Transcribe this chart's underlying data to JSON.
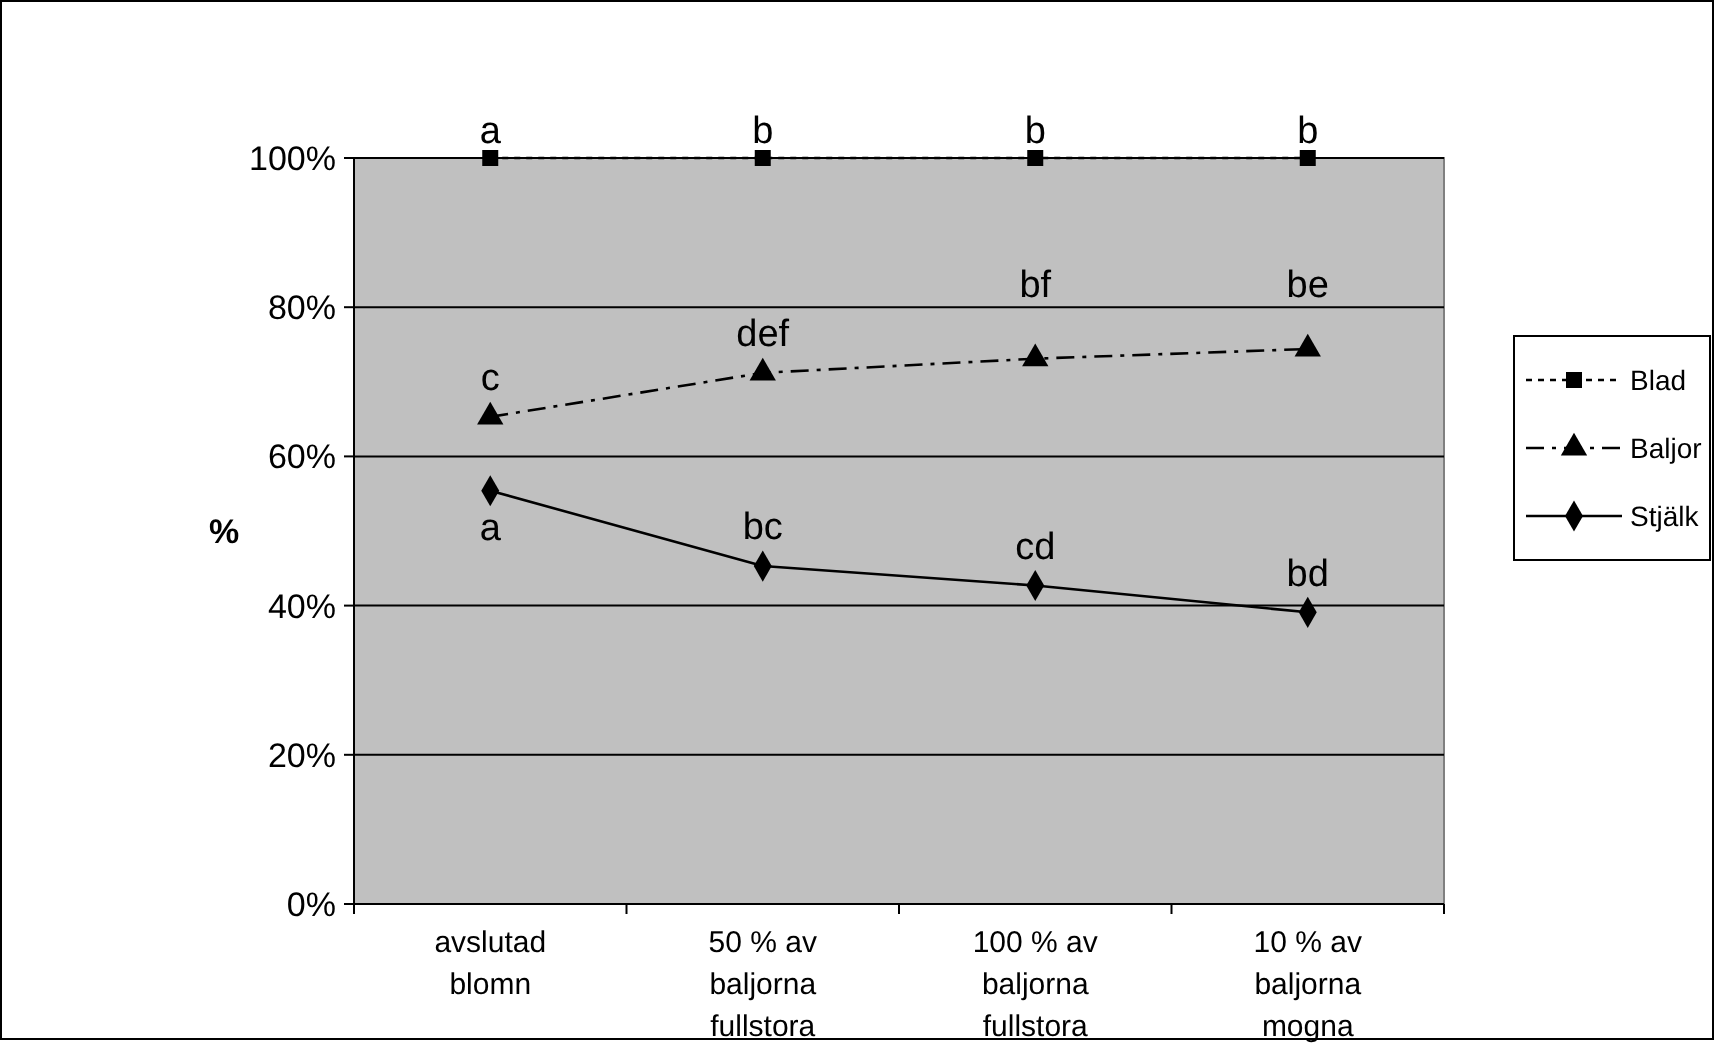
{
  "chart_data": {
    "type": "line",
    "ylabel": "%",
    "categories": [
      "avslutad\nblomn",
      "50 % av\nbaljorna\nfullstora",
      "100 % av\nbaljorna\nfullstora",
      "10 % av\nbaljorna\nmogna"
    ],
    "ylim": [
      0,
      100
    ],
    "yticks": [
      {
        "value": 0,
        "label": "0%"
      },
      {
        "value": 20,
        "label": "20%"
      },
      {
        "value": 40,
        "label": "40%"
      },
      {
        "value": 60,
        "label": "60%"
      },
      {
        "value": 80,
        "label": "80%"
      },
      {
        "value": 100,
        "label": "100%"
      }
    ],
    "grid": "y",
    "legend": "right",
    "series": [
      {
        "name": "Blad",
        "color": "#000000",
        "values": [
          100,
          100,
          100,
          100
        ],
        "marker": "square",
        "line_style": "dotted"
      },
      {
        "name": "Baljor",
        "color": "#000000",
        "values": [
          65.3,
          71.2,
          73.1,
          74.4
        ],
        "marker": "triangle",
        "line_style": "dashed"
      },
      {
        "name": "Stjälk",
        "color": "#000000",
        "values": [
          55.4,
          45.3,
          42.7,
          39.1
        ],
        "marker": "diamond",
        "line_style": "solid"
      }
    ],
    "annotations": [
      {
        "text": "a",
        "x": "avslutad\nblomn",
        "y": 100
      },
      {
        "text": "b",
        "x": "50 % av\nbaljorna\nfullstora",
        "y": 100
      },
      {
        "text": "b",
        "x": "100 % av\nbaljorna\nfullstora",
        "y": 100
      },
      {
        "text": "b",
        "x": "10 % av\nbaljorna\nmogna",
        "y": 100
      },
      {
        "text": "c",
        "x": "avslutad\nblomn",
        "y": 65.3
      },
      {
        "text": "def",
        "x": "50 % av\nbaljorna\nfullstora",
        "y": 71.2
      },
      {
        "text": "bf",
        "x": "100 % av\nbaljorna\nfullstora",
        "y": 73.1
      },
      {
        "text": "be",
        "x": "10 % av\nbaljorna\nmogna",
        "y": 74.4
      },
      {
        "text": "a",
        "x": "avslutad\nblomn",
        "y": 55.4
      },
      {
        "text": "bc",
        "x": "50 % av\nbaljorna\nfullstora",
        "y": 45.3
      },
      {
        "text": "cd",
        "x": "100 % av\nbaljorna\nfullstora",
        "y": 42.7
      },
      {
        "text": "bd",
        "x": "10 % av\nbaljorna\nmogna",
        "y": 39.1
      }
    ]
  }
}
